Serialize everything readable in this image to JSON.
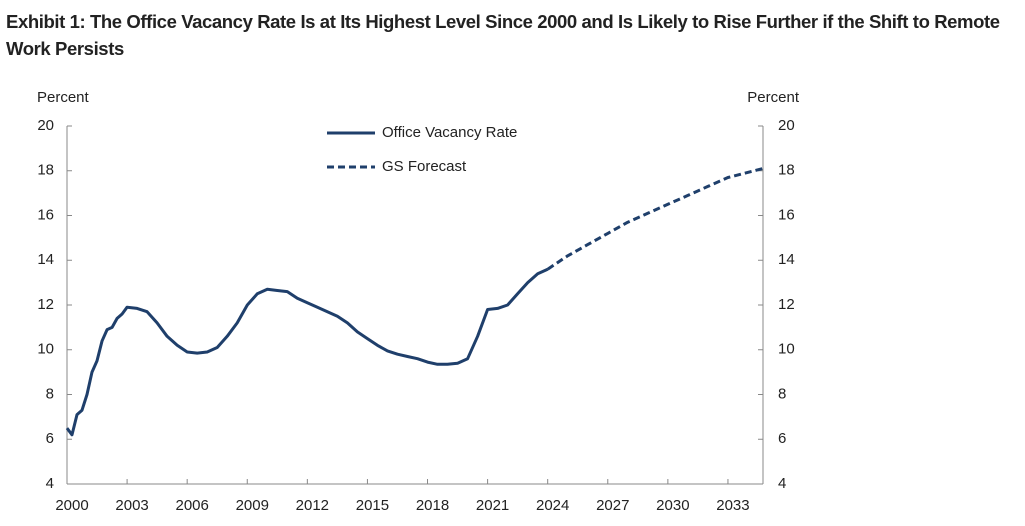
{
  "chart_data": {
    "type": "line",
    "title": "Exhibit 1: The Office Vacancy Rate Is at Its Highest Level Since 2000 and Is Likely to Rise Further if the Shift to Remote Work Persists",
    "ylabel": "Percent",
    "y2label": "Percent",
    "xlim": [
      2000,
      2034.75
    ],
    "xticks": [
      2000,
      2003,
      2006,
      2009,
      2012,
      2015,
      2018,
      2021,
      2024,
      2027,
      2030,
      2033
    ],
    "ylim": [
      4,
      20
    ],
    "yticks": [
      4,
      6,
      8,
      10,
      12,
      14,
      16,
      18,
      20
    ],
    "y2lim": [
      4,
      20
    ],
    "y2ticks": [
      4,
      6,
      8,
      10,
      12,
      14,
      16,
      18,
      20
    ],
    "legend": "top-center",
    "series": [
      {
        "name": "Office Vacancy Rate",
        "color": "#1f3f6b",
        "dashed": false,
        "x": [
          2000,
          2000.25,
          2000.5,
          2000.75,
          2001,
          2001.25,
          2001.5,
          2001.75,
          2002,
          2002.25,
          2002.5,
          2002.75,
          2003,
          2003.5,
          2004,
          2004.5,
          2005,
          2005.5,
          2006,
          2006.5,
          2007,
          2007.5,
          2008,
          2008.5,
          2009,
          2009.5,
          2010,
          2010.5,
          2011,
          2011.5,
          2012,
          2012.5,
          2013,
          2013.5,
          2014,
          2014.5,
          2015,
          2015.5,
          2016,
          2016.5,
          2017,
          2017.5,
          2018,
          2018.5,
          2019,
          2019.5,
          2020,
          2020.5,
          2021,
          2021.5,
          2022,
          2022.5,
          2023,
          2023.5,
          2024
        ],
        "values": [
          6.5,
          6.2,
          7.1,
          7.3,
          8.0,
          9.0,
          9.5,
          10.4,
          10.9,
          11.0,
          11.4,
          11.6,
          11.9,
          11.85,
          11.7,
          11.2,
          10.6,
          10.2,
          9.9,
          9.85,
          9.9,
          10.1,
          10.6,
          11.2,
          12.0,
          12.5,
          12.7,
          12.65,
          12.6,
          12.3,
          12.1,
          11.9,
          11.7,
          11.5,
          11.2,
          10.8,
          10.5,
          10.2,
          9.95,
          9.8,
          9.7,
          9.6,
          9.45,
          9.35,
          9.35,
          9.4,
          9.6,
          10.6,
          11.8,
          11.85,
          12.0,
          12.5,
          13.0,
          13.4,
          13.6
        ]
      },
      {
        "name": "GS Forecast",
        "color": "#1f3f6b",
        "dashed": true,
        "x": [
          2024,
          2025,
          2026,
          2027,
          2028,
          2029,
          2030,
          2031,
          2032,
          2033,
          2034.75
        ],
        "values": [
          13.6,
          14.2,
          14.7,
          15.2,
          15.7,
          16.1,
          16.5,
          16.9,
          17.3,
          17.7,
          18.1
        ]
      }
    ]
  }
}
